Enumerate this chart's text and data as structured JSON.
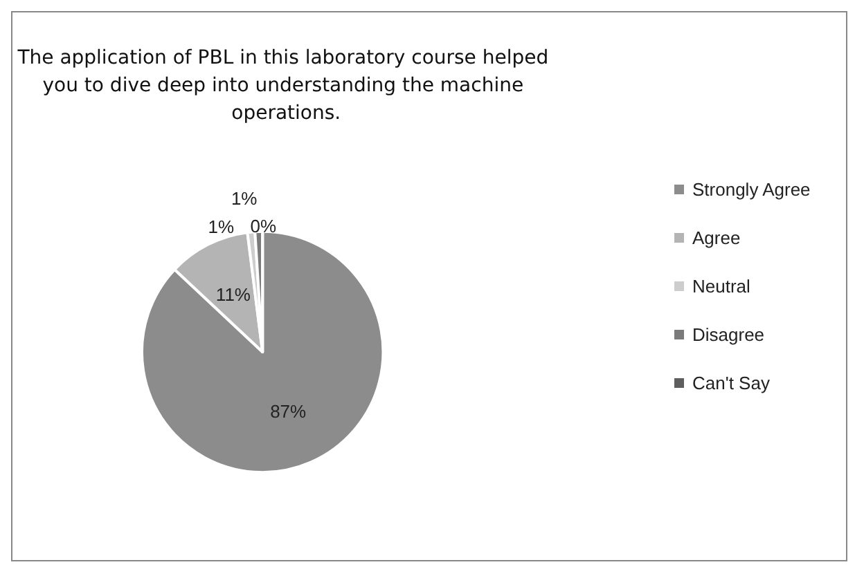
{
  "chart_data": {
    "type": "pie",
    "title": "The application of PBL in this laboratory course helped you to dive deep into understanding the machine operations.",
    "categories": [
      "Strongly Agree",
      "Agree",
      "Neutral",
      "Disagree",
      "Can't Say"
    ],
    "values": [
      87,
      11,
      1,
      1,
      0
    ],
    "value_labels": [
      "87%",
      "11%",
      "1%",
      "1%",
      "0%"
    ],
    "colors": [
      "#8c8c8c",
      "#b4b4b4",
      "#cdcdcd",
      "#7a7a7a",
      "#5e5e5e"
    ],
    "legend": "right"
  }
}
